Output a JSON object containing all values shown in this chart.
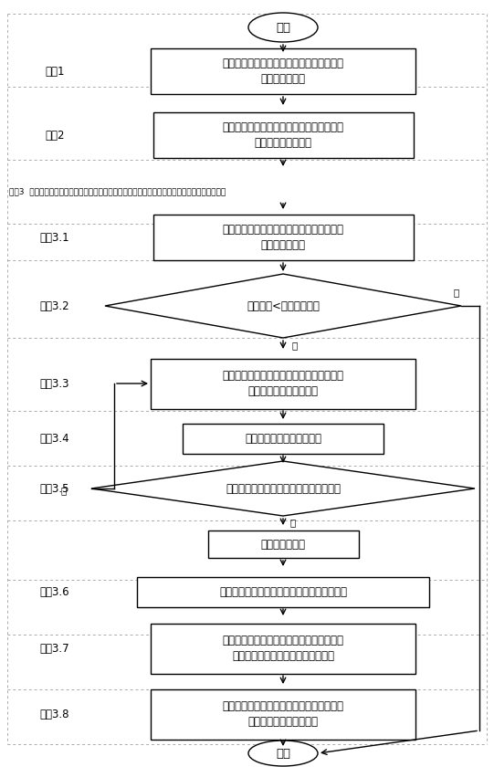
{
  "fig_width": 5.41,
  "fig_height": 8.4,
  "bg_color": "#ffffff",
  "nodes": {
    "start_text": "开始",
    "end_text": "结束",
    "step1_text": "输入用户提交的待调度任务集合、用户租赁\n的虚拟机的集合",
    "step2_text": "将任务分配给资源执行的调度问题表示成标\n准的最小值求解问题",
    "step3_text": "步骤3  用基于蚁群算法的云计算环境虚拟机任务调度算法算法求解云计算环境虚拟机任务调度问题",
    "step31_text": "对基于蚁群算法的云计算环境虚拟机任务调\n度算法的初始化",
    "step32_text": "迭代次数<最大迭代次数",
    "step33_text": "每只蚂蚁根据状态转移公式为每个任务计算\n每台虚拟机被选择的概率",
    "step34_text": "通过轮盘赌算法选择虚拟机",
    "step35_text": "工作流中的同一层任务皆选择相同虚拟机",
    "step35b_text": "局部信息素更新",
    "step36_text": "根据任务的虚拟机分配情况对信息素进行调整",
    "step37_text": "找出本次迭代中最佳调度方案，并且对这个\n方案上的所有虚拟机进行信息素更新",
    "step38_text": "找到最优分配方案并将方案中的虚拟机与工\n作流中的相应的任务绑定"
  },
  "labels": {
    "step1": "步骤1",
    "step2": "步骤2",
    "step31": "步骤3.1",
    "step32": "步骤3.2",
    "step33": "步骤3.3",
    "step34": "步骤3.4",
    "step35": "步骤3.5",
    "step36": "步骤3.6",
    "step37": "步骤3.7",
    "step38": "步骤3.8"
  },
  "yes": "是",
  "no": "否",
  "dot_color": "#aaaaaa",
  "box_edge": "#000000",
  "text_color": "#000000"
}
